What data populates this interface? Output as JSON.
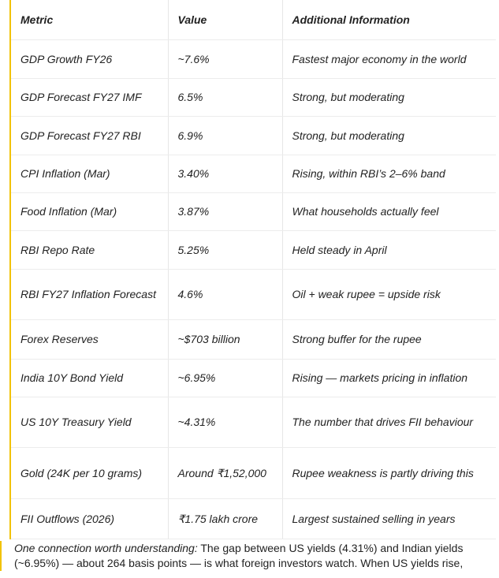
{
  "table": {
    "header": [
      "Metric",
      "Value",
      "Additional Information"
    ],
    "rows": [
      [
        "GDP Growth FY26",
        "~7.6%",
        "Fastest major economy in the world"
      ],
      [
        "GDP Forecast FY27 IMF",
        "6.5%",
        "Strong, but moderating"
      ],
      [
        "GDP Forecast FY27 RBI",
        "6.9%",
        "Strong, but moderating"
      ],
      [
        "CPI Inflation (Mar)",
        "3.40%",
        "Rising, within RBI’s 2–6% band"
      ],
      [
        "Food Inflation (Mar)",
        "3.87%",
        "What households actually feel"
      ],
      [
        "RBI Repo Rate",
        "5.25%",
        "Held steady in April"
      ],
      [
        "RBI FY27 Inflation Forecast",
        "4.6%",
        "Oil + weak rupee = upside risk"
      ],
      [
        "Forex Reserves",
        "~$703 billion",
        "Strong buffer for the rupee"
      ],
      [
        "India 10Y Bond Yield",
        "~6.95%",
        "Rising — markets pricing in inflation"
      ],
      [
        "US 10Y Treasury Yield",
        "~4.31%",
        "The number that drives FII behaviour"
      ],
      [
        "Gold (24K per 10 grams)",
        "Around ₹1,52,000",
        "Rupee weakness is partly driving this"
      ],
      [
        "FII Outflows (2026)",
        "₹1.75 lakh crore",
        "Largest sustained selling in years"
      ]
    ]
  },
  "note": {
    "lead": "One connection worth understanding:",
    "text": "The gap between US yields (4.31%) and Indian yields (~6.95%) — about 264 basis points — is what foreign investors watch. When US yields rise,"
  }
}
